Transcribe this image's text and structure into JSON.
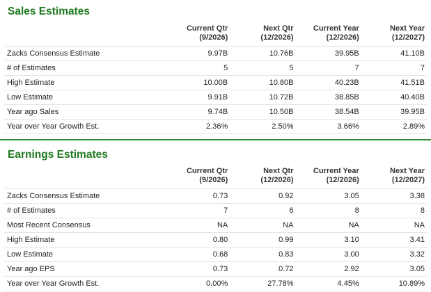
{
  "sales": {
    "title": "Sales Estimates",
    "columns": [
      {
        "line1": "Current Qtr",
        "line2": "(9/2026)"
      },
      {
        "line1": "Next Qtr",
        "line2": "(12/2026)"
      },
      {
        "line1": "Current Year",
        "line2": "(12/2026)"
      },
      {
        "line1": "Next Year",
        "line2": "(12/2027)"
      }
    ],
    "rows": [
      {
        "label": "Zacks Consensus Estimate",
        "values": [
          "9.97B",
          "10.76B",
          "39.95B",
          "41.10B"
        ]
      },
      {
        "label": "# of Estimates",
        "values": [
          "5",
          "5",
          "7",
          "7"
        ]
      },
      {
        "label": "High Estimate",
        "values": [
          "10.00B",
          "10.80B",
          "40.23B",
          "41.51B"
        ]
      },
      {
        "label": "Low Estimate",
        "values": [
          "9.91B",
          "10.72B",
          "38.85B",
          "40.40B"
        ]
      },
      {
        "label": "Year ago Sales",
        "values": [
          "9.74B",
          "10.50B",
          "38.54B",
          "39.95B"
        ]
      },
      {
        "label": "Year over Year Growth Est.",
        "values": [
          "2.36%",
          "2.50%",
          "3.66%",
          "2.89%"
        ]
      }
    ]
  },
  "earnings": {
    "title": "Earnings Estimates",
    "columns": [
      {
        "line1": "Current Qtr",
        "line2": "(9/2026)"
      },
      {
        "line1": "Next Qtr",
        "line2": "(12/2026)"
      },
      {
        "line1": "Current Year",
        "line2": "(12/2026)"
      },
      {
        "line1": "Next Year",
        "line2": "(12/2027)"
      }
    ],
    "rows": [
      {
        "label": "Zacks Consensus Estimate",
        "values": [
          "0.73",
          "0.92",
          "3.05",
          "3.38"
        ]
      },
      {
        "label": "# of Estimates",
        "values": [
          "7",
          "6",
          "8",
          "8"
        ]
      },
      {
        "label": "Most Recent Consensus",
        "values": [
          "NA",
          "NA",
          "NA",
          "NA"
        ]
      },
      {
        "label": "High Estimate",
        "values": [
          "0.80",
          "0.99",
          "3.10",
          "3.41"
        ]
      },
      {
        "label": "Low Estimate",
        "values": [
          "0.68",
          "0.83",
          "3.00",
          "3.32"
        ]
      },
      {
        "label": "Year ago EPS",
        "values": [
          "0.73",
          "0.72",
          "2.92",
          "3.05"
        ]
      },
      {
        "label": "Year over Year Growth Est.",
        "values": [
          "0.00%",
          "27.78%",
          "4.45%",
          "10.89%"
        ]
      }
    ]
  },
  "colors": {
    "title_green": "#1f7a1f",
    "divider_green": "#2e8b2e",
    "row_border": "#e4e4e4"
  }
}
